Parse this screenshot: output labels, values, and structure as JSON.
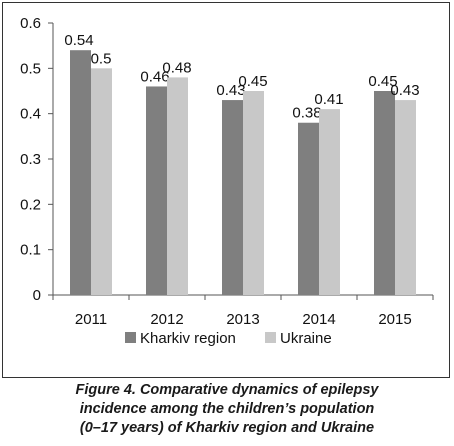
{
  "chart_data": {
    "type": "bar",
    "categories": [
      "2011",
      "2012",
      "2013",
      "2014",
      "2015"
    ],
    "series": [
      {
        "name": "Kharkiv region",
        "values": [
          0.54,
          0.46,
          0.43,
          0.38,
          0.45
        ],
        "labels": [
          "0.54",
          "0.46",
          "0.43",
          "0.38",
          "0.45"
        ],
        "color": "#7f7f7f"
      },
      {
        "name": "Ukraine",
        "values": [
          0.5,
          0.48,
          0.45,
          0.41,
          0.43
        ],
        "labels": [
          "0.5",
          "0.48",
          "0.45",
          "0.41",
          "0.43"
        ],
        "color": "#c8c8c8"
      }
    ],
    "ylim": [
      0,
      0.6
    ],
    "yticks": [
      "0",
      "0.1",
      "0.2",
      "0.3",
      "0.4",
      "0.5",
      "0.6"
    ],
    "grid": false,
    "legend": "bottom"
  },
  "caption": {
    "line1": "Figure 4. Comparative dynamics of epilepsy",
    "line2": "incidence among the children’s population",
    "line3": "(0–17 years) of Kharkiv region and Ukraine"
  }
}
